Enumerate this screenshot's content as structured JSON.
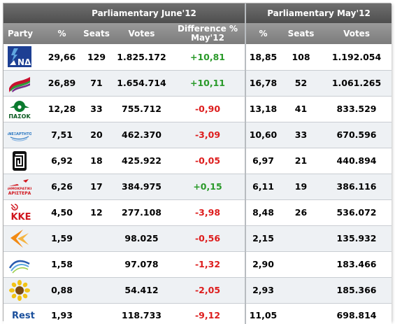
{
  "headers": {
    "group_june": "Parliamentary June'12",
    "group_may": "Parliamentary May'12",
    "party": "Party",
    "pct_june": "%",
    "seats_june": "Seats",
    "votes_june": "Votes",
    "difference": "Difference %",
    "difference_sub": "May'12",
    "pct_may": "%",
    "seats_may": "Seats",
    "votes_may": "Votes"
  },
  "rows": [
    {
      "logo": "nd-logo",
      "pct_june": "29,66",
      "seats_june": "129",
      "votes_june": "1.825.172",
      "diff": "+10,81",
      "diff_sign": "pos",
      "pct_may": "18,85",
      "seats_may": "108",
      "votes_may": "1.192.054"
    },
    {
      "logo": "syriza-logo",
      "pct_june": "26,89",
      "seats_june": "71",
      "votes_june": "1.654.714",
      "diff": "+10,11",
      "diff_sign": "pos",
      "pct_may": "16,78",
      "seats_may": "52",
      "votes_may": "1.061.265"
    },
    {
      "logo": "pasok-logo",
      "logo_text": "ΠΑΣΟΚ",
      "pct_june": "12,28",
      "seats_june": "33",
      "votes_june": "755.712",
      "diff": "-0,90",
      "diff_sign": "neg",
      "pct_may": "13,18",
      "seats_may": "41",
      "votes_may": "833.529"
    },
    {
      "logo": "anel-logo",
      "logo_text": "ΑΝΕΞΑΡΤΗΤΟΙ",
      "pct_june": "7,51",
      "seats_june": "20",
      "votes_june": "462.370",
      "diff": "-3,09",
      "diff_sign": "neg",
      "pct_may": "10,60",
      "seats_may": "33",
      "votes_may": "670.596"
    },
    {
      "logo": "golden-dawn-logo",
      "pct_june": "6,92",
      "seats_june": "18",
      "votes_june": "425.922",
      "diff": "-0,05",
      "diff_sign": "neg",
      "pct_may": "6,97",
      "seats_may": "21",
      "votes_may": "440.894"
    },
    {
      "logo": "dimar-logo",
      "logo_text_1": "ΔΗΜΟΚΡΑΤΙΚΗ",
      "logo_text_2": "ΑΡΙΣΤΕΡΑ",
      "pct_june": "6,26",
      "seats_june": "17",
      "votes_june": "384.975",
      "diff": "+0,15",
      "diff_sign": "pos",
      "pct_may": "6,11",
      "seats_may": "19",
      "votes_may": "386.116"
    },
    {
      "logo": "kke-logo",
      "logo_text": "ΚΚΕ",
      "pct_june": "4,50",
      "seats_june": "12",
      "votes_june": "277.108",
      "diff": "-3,98",
      "diff_sign": "neg",
      "pct_may": "8,48",
      "seats_may": "26",
      "votes_may": "536.072"
    },
    {
      "logo": "laos-logo",
      "pct_june": "1,59",
      "seats_june": "",
      "votes_june": "98.025",
      "diff": "-0,56",
      "diff_sign": "neg",
      "pct_may": "2,15",
      "seats_may": "",
      "votes_may": "135.932"
    },
    {
      "logo": "da-logo",
      "pct_june": "1,58",
      "seats_june": "",
      "votes_june": "97.078",
      "diff": "-1,32",
      "diff_sign": "neg",
      "pct_may": "2,90",
      "seats_may": "",
      "votes_may": "183.466"
    },
    {
      "logo": "greens-logo",
      "pct_june": "0,88",
      "seats_june": "",
      "votes_june": "54.412",
      "diff": "-2,05",
      "diff_sign": "neg",
      "pct_may": "2,93",
      "seats_may": "",
      "votes_may": "185.366"
    }
  ],
  "rest": {
    "label": "Rest",
    "pct_june": "1,93",
    "seats_june": "",
    "votes_june": "118.733",
    "diff": "-9,12",
    "diff_sign": "neg",
    "pct_may": "11,05",
    "seats_may": "",
    "votes_may": "698.814"
  },
  "colors": {
    "positive": "#2a9a2a",
    "negative": "#dd1c1c",
    "header_dark": "#5a5a5a",
    "header_light": "#8a8a8a",
    "row_alt": "#eef1f4"
  }
}
